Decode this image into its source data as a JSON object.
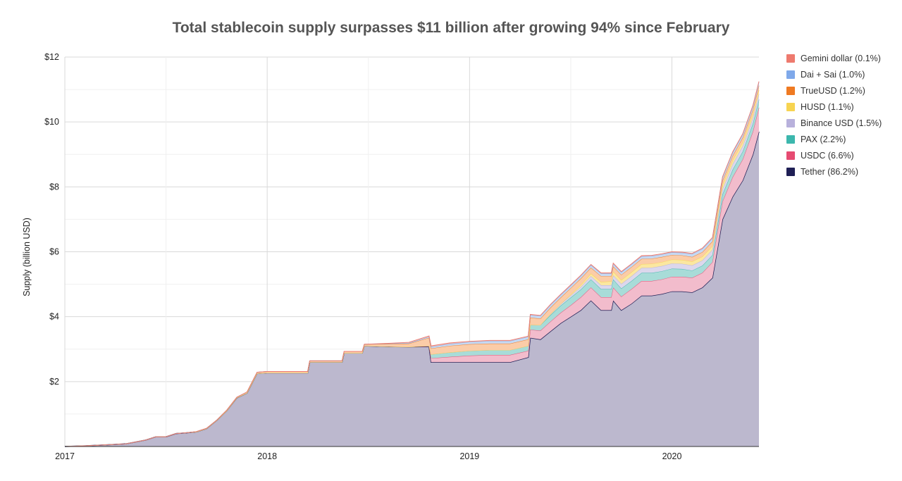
{
  "chart_data": {
    "type": "area",
    "stacked": true,
    "title": "Total stablecoin supply surpasses $11 billion after growing 94% since February",
    "ylabel": "Supply (billion USD)",
    "xlabel": "",
    "x_ticks": [
      "2017",
      "2018",
      "2019",
      "2020"
    ],
    "y_ticks": [
      "$2",
      "$4",
      "$6",
      "$8",
      "$10",
      "$12"
    ],
    "y_tick_values": [
      2,
      4,
      6,
      8,
      10,
      12
    ],
    "ylim": [
      0,
      12
    ],
    "xlim": [
      2017.0,
      2020.43
    ],
    "grid": true,
    "legend_position": "right",
    "x": [
      2017.0,
      2017.1,
      2017.2,
      2017.3,
      2017.4,
      2017.45,
      2017.5,
      2017.55,
      2017.6,
      2017.65,
      2017.7,
      2017.75,
      2017.8,
      2017.85,
      2017.9,
      2017.95,
      2018.0,
      2018.05,
      2018.1,
      2018.2,
      2018.21,
      2018.37,
      2018.38,
      2018.47,
      2018.48,
      2018.6,
      2018.7,
      2018.8,
      2018.81,
      2018.9,
      2019.0,
      2019.1,
      2019.2,
      2019.29,
      2019.3,
      2019.35,
      2019.4,
      2019.45,
      2019.5,
      2019.55,
      2019.6,
      2019.65,
      2019.7,
      2019.71,
      2019.75,
      2019.8,
      2019.85,
      2019.9,
      2019.95,
      2020.0,
      2020.05,
      2020.1,
      2020.15,
      2020.2,
      2020.25,
      2020.3,
      2020.35,
      2020.4,
      2020.43
    ],
    "series": [
      {
        "name": "Tether (86.2%)",
        "color": "#2a2a5c",
        "values": [
          0.0,
          0.02,
          0.05,
          0.08,
          0.2,
          0.3,
          0.3,
          0.4,
          0.42,
          0.45,
          0.55,
          0.8,
          1.1,
          1.5,
          1.65,
          2.25,
          2.27,
          2.27,
          2.27,
          2.27,
          2.6,
          2.6,
          2.88,
          2.88,
          3.1,
          3.08,
          3.07,
          3.08,
          2.6,
          2.6,
          2.6,
          2.6,
          2.6,
          2.75,
          3.35,
          3.3,
          3.55,
          3.8,
          4.0,
          4.2,
          4.5,
          4.2,
          4.2,
          4.5,
          4.2,
          4.4,
          4.65,
          4.65,
          4.7,
          4.78,
          4.78,
          4.75,
          4.9,
          5.2,
          7.0,
          7.7,
          8.2,
          9.0,
          9.7
        ]
      },
      {
        "name": "USDC (6.6%)",
        "color": "#f2bccc",
        "values": [
          0,
          0,
          0,
          0,
          0,
          0,
          0,
          0,
          0,
          0,
          0,
          0,
          0,
          0,
          0,
          0,
          0,
          0,
          0,
          0,
          0,
          0,
          0,
          0,
          0,
          0,
          0,
          0.01,
          0.12,
          0.16,
          0.2,
          0.22,
          0.22,
          0.2,
          0.25,
          0.27,
          0.3,
          0.32,
          0.35,
          0.4,
          0.4,
          0.4,
          0.4,
          0.4,
          0.42,
          0.45,
          0.45,
          0.45,
          0.45,
          0.45,
          0.45,
          0.45,
          0.45,
          0.48,
          0.55,
          0.6,
          0.65,
          0.7,
          0.74
        ]
      },
      {
        "name": "PAX (2.2%)",
        "color": "#a8dcd8",
        "values": [
          0,
          0,
          0,
          0,
          0,
          0,
          0,
          0,
          0,
          0,
          0,
          0,
          0,
          0,
          0,
          0,
          0,
          0,
          0,
          0,
          0,
          0,
          0,
          0,
          0,
          0,
          0,
          0.01,
          0.12,
          0.14,
          0.15,
          0.15,
          0.15,
          0.15,
          0.15,
          0.17,
          0.2,
          0.22,
          0.24,
          0.24,
          0.25,
          0.25,
          0.25,
          0.25,
          0.25,
          0.25,
          0.25,
          0.25,
          0.25,
          0.25,
          0.24,
          0.22,
          0.22,
          0.22,
          0.22,
          0.23,
          0.24,
          0.25,
          0.25
        ]
      },
      {
        "name": "Binance USD (1.5%)",
        "color": "#dcd7ec",
        "values": [
          0,
          0,
          0,
          0,
          0,
          0,
          0,
          0,
          0,
          0,
          0,
          0,
          0,
          0,
          0,
          0,
          0,
          0,
          0,
          0,
          0,
          0,
          0,
          0,
          0,
          0,
          0,
          0,
          0,
          0,
          0,
          0,
          0,
          0,
          0,
          0,
          0.03,
          0.05,
          0.06,
          0.08,
          0.1,
          0.12,
          0.12,
          0.12,
          0.14,
          0.15,
          0.15,
          0.16,
          0.16,
          0.16,
          0.16,
          0.16,
          0.16,
          0.16,
          0.16,
          0.17,
          0.17,
          0.17,
          0.17
        ]
      },
      {
        "name": "HUSD (1.1%)",
        "color": "#fbe7a0",
        "values": [
          0,
          0,
          0,
          0,
          0,
          0,
          0,
          0,
          0,
          0,
          0,
          0,
          0,
          0,
          0,
          0,
          0,
          0,
          0,
          0,
          0,
          0,
          0,
          0,
          0,
          0,
          0,
          0,
          0,
          0,
          0,
          0,
          0,
          0,
          0,
          0,
          0,
          0,
          0.03,
          0.06,
          0.08,
          0.1,
          0.12,
          0.12,
          0.12,
          0.12,
          0.12,
          0.12,
          0.12,
          0.12,
          0.12,
          0.12,
          0.12,
          0.12,
          0.12,
          0.12,
          0.12,
          0.12,
          0.12
        ]
      },
      {
        "name": "TrueUSD (1.2%)",
        "color": "#fbcca8",
        "values": [
          0,
          0,
          0,
          0,
          0,
          0,
          0,
          0,
          0,
          0.01,
          0.01,
          0.01,
          0.02,
          0.02,
          0.03,
          0.04,
          0.04,
          0.04,
          0.04,
          0.04,
          0.04,
          0.04,
          0.05,
          0.05,
          0.05,
          0.08,
          0.1,
          0.25,
          0.18,
          0.2,
          0.2,
          0.2,
          0.2,
          0.2,
          0.22,
          0.2,
          0.2,
          0.2,
          0.2,
          0.2,
          0.18,
          0.18,
          0.16,
          0.16,
          0.16,
          0.16,
          0.16,
          0.16,
          0.16,
          0.14,
          0.14,
          0.14,
          0.14,
          0.14,
          0.14,
          0.14,
          0.14,
          0.14,
          0.14
        ]
      },
      {
        "name": "Dai + Sai (1.0%)",
        "color": "#c6d9f3",
        "values": [
          0,
          0,
          0,
          0,
          0,
          0,
          0,
          0,
          0,
          0,
          0,
          0,
          0,
          0,
          0,
          0,
          0,
          0,
          0,
          0,
          0,
          0,
          0,
          0,
          0,
          0.01,
          0.02,
          0.03,
          0.05,
          0.06,
          0.07,
          0.08,
          0.08,
          0.08,
          0.08,
          0.08,
          0.08,
          0.08,
          0.08,
          0.08,
          0.08,
          0.08,
          0.08,
          0.08,
          0.08,
          0.08,
          0.08,
          0.08,
          0.08,
          0.08,
          0.08,
          0.09,
          0.1,
          0.1,
          0.1,
          0.1,
          0.1,
          0.11,
          0.11
        ]
      },
      {
        "name": "Gemini dollar (0.1%)",
        "color": "#f1c1b9",
        "values": [
          0,
          0,
          0,
          0,
          0,
          0,
          0,
          0,
          0,
          0,
          0,
          0,
          0,
          0,
          0,
          0,
          0,
          0,
          0,
          0,
          0,
          0,
          0,
          0,
          0,
          0.01,
          0.02,
          0.03,
          0.03,
          0.03,
          0.02,
          0.02,
          0.02,
          0.02,
          0.02,
          0.02,
          0.02,
          0.02,
          0.02,
          0.02,
          0.02,
          0.02,
          0.02,
          0.02,
          0.02,
          0.02,
          0.02,
          0.02,
          0.02,
          0.02,
          0.02,
          0.02,
          0.02,
          0.02,
          0.02,
          0.02,
          0.02,
          0.02,
          0.02
        ]
      }
    ]
  },
  "legend": [
    {
      "label": "Gemini dollar (0.1%)",
      "color": "#ee7a6e"
    },
    {
      "label": "Dai + Sai (1.0%)",
      "color": "#7fa9ea"
    },
    {
      "label": "TrueUSD (1.2%)",
      "color": "#ef7a22"
    },
    {
      "label": "HUSD (1.1%)",
      "color": "#f7d451"
    },
    {
      "label": "Binance USD (1.5%)",
      "color": "#b8b1dc"
    },
    {
      "label": "PAX (2.2%)",
      "color": "#3cb7ad"
    },
    {
      "label": "USDC (6.6%)",
      "color": "#e64b72"
    },
    {
      "label": "Tether (86.2%)",
      "color": "#1f1f55"
    }
  ]
}
